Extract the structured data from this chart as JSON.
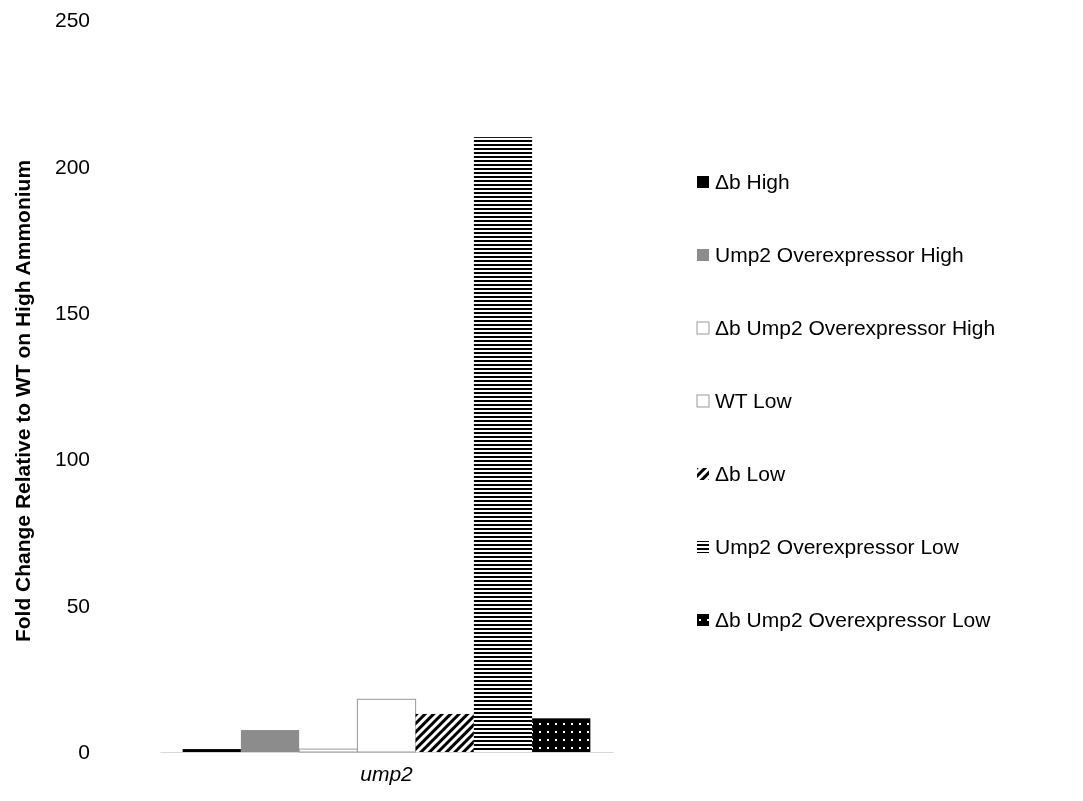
{
  "chart_data": {
    "type": "bar",
    "ylabel": "Fold Change Relative to WT on High Ammonium",
    "categories": [
      "ump2"
    ],
    "series": [
      {
        "name": "Δb High",
        "color": "#000000",
        "values": [
          1
        ]
      },
      {
        "name": "Ump2 Overexpressor High",
        "color": "#8c8c8c",
        "values": [
          7.5
        ]
      },
      {
        "name": "Δb Ump2 Overexpressor High",
        "color": "#ffffff",
        "values": [
          1
        ]
      },
      {
        "name": "WT Low",
        "color": "#ffffff",
        "values": [
          18
        ]
      },
      {
        "name": "Δb Low",
        "color": "#000000",
        "values": [
          13
        ]
      },
      {
        "name": "Ump2 Overexpressor Low",
        "color": "#000000",
        "values": [
          210
        ]
      },
      {
        "name": "Δb Ump2 Overexpressor Low",
        "color": "#000000",
        "values": [
          11.5
        ]
      }
    ],
    "ylim": [
      0,
      250
    ],
    "yticks": [
      0,
      50,
      100,
      150,
      200,
      250
    ],
    "grid": false,
    "legend": "right"
  }
}
